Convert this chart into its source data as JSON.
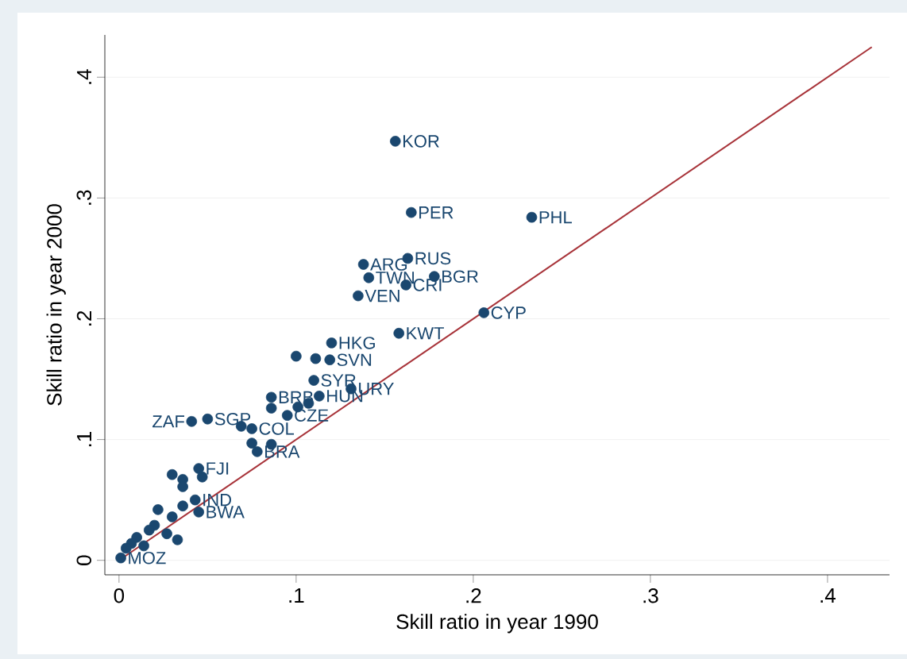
{
  "chart_data": {
    "type": "scatter",
    "xlabel": "Skill ratio in year 1990",
    "ylabel": "Skill ratio in year 2000",
    "series": [
      {
        "color": "#1a476f",
        "marker": "circle",
        "x": [
          0.156,
          0.165,
          0.233,
          0.163,
          0.138,
          0.141,
          0.178,
          0.162,
          0.135,
          0.206,
          0.158,
          0.12,
          0.1,
          0.111,
          0.119,
          0.11,
          0.131,
          0.113,
          0.086,
          0.086,
          0.101,
          0.107,
          0.095,
          0.041,
          0.05,
          0.069,
          0.075,
          0.075,
          0.086,
          0.078,
          0.045,
          0.03,
          0.047,
          0.036,
          0.036,
          0.043,
          0.036,
          0.022,
          0.03,
          0.045,
          0.02,
          0.017,
          0.01,
          0.007,
          0.004,
          0.001,
          0.027,
          0.033,
          0.014
        ],
        "values": [
          0.347,
          0.288,
          0.284,
          0.25,
          0.245,
          0.234,
          0.235,
          0.228,
          0.219,
          0.205,
          0.188,
          0.18,
          0.169,
          0.167,
          0.166,
          0.149,
          0.142,
          0.136,
          0.135,
          0.126,
          0.127,
          0.13,
          0.12,
          0.115,
          0.117,
          0.111,
          0.109,
          0.097,
          0.096,
          0.09,
          0.076,
          0.071,
          0.069,
          0.067,
          0.061,
          0.05,
          0.045,
          0.042,
          0.036,
          0.04,
          0.029,
          0.025,
          0.019,
          0.014,
          0.01,
          0.002,
          0.022,
          0.017,
          0.012
        ]
      },
      {
        "type": "line",
        "color": "#a8343a",
        "marker": "none",
        "x": [
          0,
          0.425
        ],
        "values": [
          0,
          0.425
        ]
      }
    ],
    "annotations": [
      {
        "text": "KOR",
        "x": 0.156,
        "y": 0.347
      },
      {
        "text": "PER",
        "x": 0.165,
        "y": 0.288
      },
      {
        "text": "PHL",
        "x": 0.233,
        "y": 0.284
      },
      {
        "text": "RUS",
        "x": 0.163,
        "y": 0.25
      },
      {
        "text": "ARG",
        "x": 0.138,
        "y": 0.245
      },
      {
        "text": "TWN",
        "x": 0.141,
        "y": 0.234
      },
      {
        "text": "BGR",
        "x": 0.178,
        "y": 0.235
      },
      {
        "text": "CRI",
        "x": 0.162,
        "y": 0.228
      },
      {
        "text": "VEN",
        "x": 0.135,
        "y": 0.219
      },
      {
        "text": "CYP",
        "x": 0.206,
        "y": 0.205
      },
      {
        "text": "KWT",
        "x": 0.158,
        "y": 0.188
      },
      {
        "text": "HKG",
        "x": 0.12,
        "y": 0.18
      },
      {
        "text": "SVN",
        "x": 0.119,
        "y": 0.166
      },
      {
        "text": "SYR",
        "x": 0.11,
        "y": 0.149
      },
      {
        "text": "URY",
        "x": 0.131,
        "y": 0.142
      },
      {
        "text": "HUN",
        "x": 0.113,
        "y": 0.136
      },
      {
        "text": "BRB",
        "x": 0.086,
        "y": 0.135
      },
      {
        "text": "CZE",
        "x": 0.095,
        "y": 0.12
      },
      {
        "text": "ZAF",
        "x": 0.041,
        "y": 0.115
      },
      {
        "text": "SGP",
        "x": 0.05,
        "y": 0.117
      },
      {
        "text": "COL",
        "x": 0.075,
        "y": 0.109
      },
      {
        "text": "BRA",
        "x": 0.078,
        "y": 0.09
      },
      {
        "text": "FJI",
        "x": 0.045,
        "y": 0.076
      },
      {
        "text": "IND",
        "x": 0.043,
        "y": 0.05
      },
      {
        "text": "BWA",
        "x": 0.045,
        "y": 0.04
      },
      {
        "text": "MOZ",
        "x": 0.001,
        "y": 0.002
      }
    ],
    "xlim": [
      -0.008,
      0.435
    ],
    "ylim": [
      -0.012,
      0.435
    ],
    "xticks": [
      0,
      {
        "value": 0.1,
        "label": ".1"
      },
      {
        "value": 0.2,
        "label": ".2"
      },
      {
        "value": 0.3,
        "label": ".3"
      },
      {
        "value": 0.4,
        "label": ".4"
      }
    ],
    "yticks": [
      0,
      {
        "value": 0.1,
        "label": ".1"
      },
      {
        "value": 0.2,
        "label": ".2"
      },
      {
        "value": 0.3,
        "label": ".3"
      },
      {
        "value": 0.4,
        "label": ".4"
      }
    ],
    "grid": "y"
  }
}
